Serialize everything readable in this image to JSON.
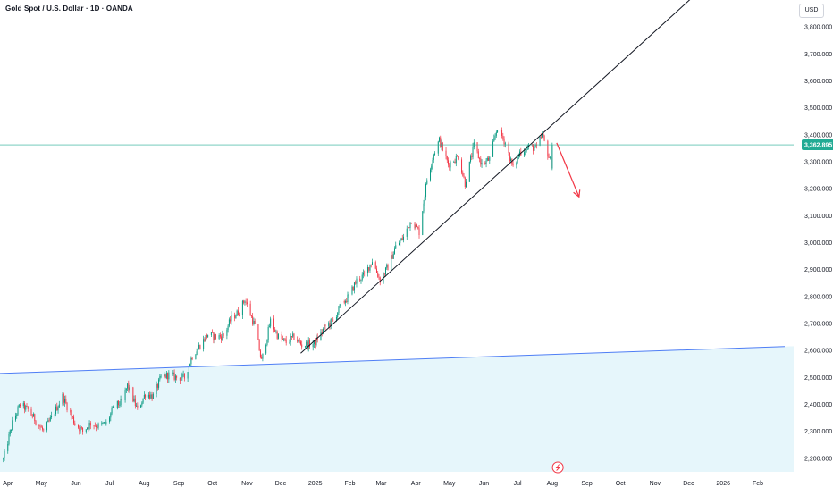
{
  "header": {
    "title": "Gold Spot / U.S. Dollar · 1D · OANDA",
    "currency": "USD"
  },
  "colors": {
    "up": "#089981",
    "down": "#f23645",
    "trend_line": "#131722",
    "support_line": "#4f7ef5",
    "support_fill": "#e6f6fb",
    "current_price_line": "#22ab94",
    "forecast_arrow": "#f23645",
    "axis_text": "#131722"
  },
  "chart_data": {
    "type": "candlestick",
    "x_labels": [
      "Apr",
      "May",
      "Jun",
      "Jul",
      "Aug",
      "Sep",
      "Oct",
      "Nov",
      "Dec",
      "2025",
      "Feb",
      "Mar",
      "Apr",
      "May",
      "Jun",
      "Jul",
      "Aug",
      "Sep",
      "Oct",
      "Nov",
      "Dec",
      "2026",
      "Feb"
    ],
    "y_tick_labels": [
      "2,200.000",
      "2,300.000",
      "2,400.000",
      "2,500.000",
      "2,600.000",
      "2,700.000",
      "2,800.000",
      "2,900.000",
      "3,000.000",
      "3,100.000",
      "3,200.000",
      "3,300.000",
      "3,400.000",
      "3,500.000",
      "3,600.000",
      "3,700.000",
      "3,800.000"
    ],
    "y_ticks": [
      2200,
      2300,
      2400,
      2500,
      2600,
      2700,
      2800,
      2900,
      3000,
      3100,
      3200,
      3300,
      3400,
      3500,
      3600,
      3700,
      3800
    ],
    "ylim": [
      2150,
      3900
    ],
    "current_price": 3362.895,
    "current_price_label": "3,362.895",
    "price_path": [
      [
        "2024-03-28",
        2195
      ],
      [
        "2024-04-05",
        2330
      ],
      [
        "2024-04-12",
        2400
      ],
      [
        "2024-04-19",
        2380
      ],
      [
        "2024-04-26",
        2340
      ],
      [
        "2024-05-03",
        2300
      ],
      [
        "2024-05-10",
        2350
      ],
      [
        "2024-05-20",
        2430
      ],
      [
        "2024-05-31",
        2330
      ],
      [
        "2024-06-07",
        2300
      ],
      [
        "2024-06-14",
        2330
      ],
      [
        "2024-06-21",
        2320
      ],
      [
        "2024-06-28",
        2330
      ],
      [
        "2024-07-05",
        2390
      ],
      [
        "2024-07-12",
        2410
      ],
      [
        "2024-07-17",
        2470
      ],
      [
        "2024-07-26",
        2380
      ],
      [
        "2024-08-02",
        2440
      ],
      [
        "2024-08-09",
        2430
      ],
      [
        "2024-08-16",
        2500
      ],
      [
        "2024-08-23",
        2510
      ],
      [
        "2024-08-30",
        2500
      ],
      [
        "2024-09-06",
        2500
      ],
      [
        "2024-09-13",
        2580
      ],
      [
        "2024-09-20",
        2620
      ],
      [
        "2024-09-27",
        2660
      ],
      [
        "2024-10-04",
        2650
      ],
      [
        "2024-10-11",
        2655
      ],
      [
        "2024-10-18",
        2720
      ],
      [
        "2024-10-25",
        2745
      ],
      [
        "2024-10-30",
        2790
      ],
      [
        "2024-11-08",
        2690
      ],
      [
        "2024-11-14",
        2560
      ],
      [
        "2024-11-22",
        2710
      ],
      [
        "2024-11-29",
        2650
      ],
      [
        "2024-12-06",
        2630
      ],
      [
        "2024-12-13",
        2650
      ],
      [
        "2024-12-20",
        2620
      ],
      [
        "2024-12-31",
        2625
      ],
      [
        "2025-01-10",
        2690
      ],
      [
        "2025-01-17",
        2710
      ],
      [
        "2025-01-24",
        2770
      ],
      [
        "2025-01-31",
        2800
      ],
      [
        "2025-02-07",
        2860
      ],
      [
        "2025-02-14",
        2880
      ],
      [
        "2025-02-21",
        2935
      ],
      [
        "2025-02-28",
        2860
      ],
      [
        "2025-03-07",
        2910
      ],
      [
        "2025-03-14",
        2985
      ],
      [
        "2025-03-21",
        3020
      ],
      [
        "2025-03-28",
        3085
      ],
      [
        "2025-04-04",
        3040
      ],
      [
        "2025-04-11",
        3235
      ],
      [
        "2025-04-17",
        3330
      ],
      [
        "2025-04-22",
        3380
      ],
      [
        "2025-04-30",
        3290
      ],
      [
        "2025-05-09",
        3320
      ],
      [
        "2025-05-15",
        3220
      ],
      [
        "2025-05-23",
        3360
      ],
      [
        "2025-05-30",
        3290
      ],
      [
        "2025-06-06",
        3310
      ],
      [
        "2025-06-13",
        3430
      ],
      [
        "2025-06-20",
        3370
      ],
      [
        "2025-06-27",
        3275
      ],
      [
        "2025-07-03",
        3335
      ],
      [
        "2025-07-11",
        3355
      ],
      [
        "2025-07-18",
        3350
      ],
      [
        "2025-07-23",
        3400
      ],
      [
        "2025-07-31",
        3290
      ],
      [
        "2025-08-01",
        3362
      ]
    ],
    "trend_line": {
      "from": [
        "2024-12-19",
        2590
      ],
      "to": [
        "2025-12-31",
        4010
      ]
    },
    "support_line": {
      "from": [
        "2024-03-25",
        2515
      ],
      "to": [
        "2026-02-25",
        2615
      ]
    },
    "forecast_arrow": {
      "from": [
        "2025-08-05",
        3370
      ],
      "to": [
        "2025-08-25",
        3170
      ]
    },
    "event_marker": {
      "date": "2025-08-06",
      "icon": "lightning-icon"
    },
    "x_domain": [
      "2024-03-25",
      "2026-03-05"
    ],
    "grid": false
  }
}
